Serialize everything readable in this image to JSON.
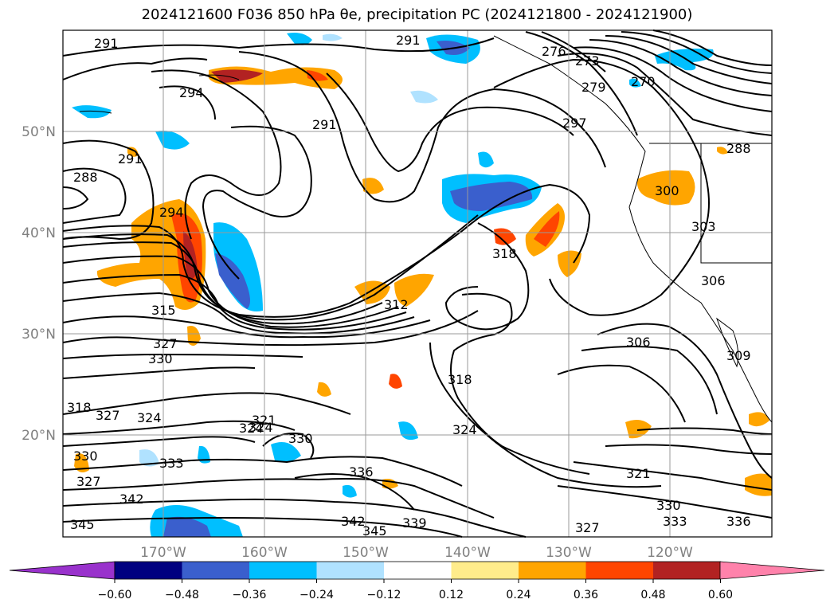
{
  "title": "2024121600 F036 850 hPa θe, precipitation PC (2024121800 - 2024121900)",
  "lat_labels": [
    "50°N",
    "40°N",
    "30°N",
    "20°N"
  ],
  "lon_labels": [
    "170°W",
    "160°W",
    "150°W",
    "140°W",
    "130°W",
    "120°W"
  ],
  "contour_labels": [
    "291",
    "291",
    "294",
    "291",
    "288",
    "291",
    "294",
    "315",
    "327",
    "330",
    "318",
    "327",
    "324",
    "321",
    "324",
    "330",
    "333",
    "330",
    "327",
    "342",
    "345",
    "336",
    "342",
    "345",
    "339",
    "318",
    "324",
    "318",
    "297",
    "273",
    "276",
    "279",
    "270",
    "288",
    "300",
    "303",
    "306",
    "309",
    "306",
    "321",
    "330",
    "333",
    "327",
    "336",
    "324",
    "312"
  ],
  "colorbar": {
    "ticks": [
      "−0.60",
      "−0.48",
      "−0.36",
      "−0.24",
      "−0.12",
      "0.12",
      "0.24",
      "0.36",
      "0.48",
      "0.60"
    ],
    "colors": [
      "#9932cc",
      "#000080",
      "#3a5fcd",
      "#00bfff",
      "#b0e2ff",
      "#ffffff",
      "#ffec8b",
      "#ffa500",
      "#ff4500",
      "#b22222",
      "#ff82ab"
    ]
  }
}
